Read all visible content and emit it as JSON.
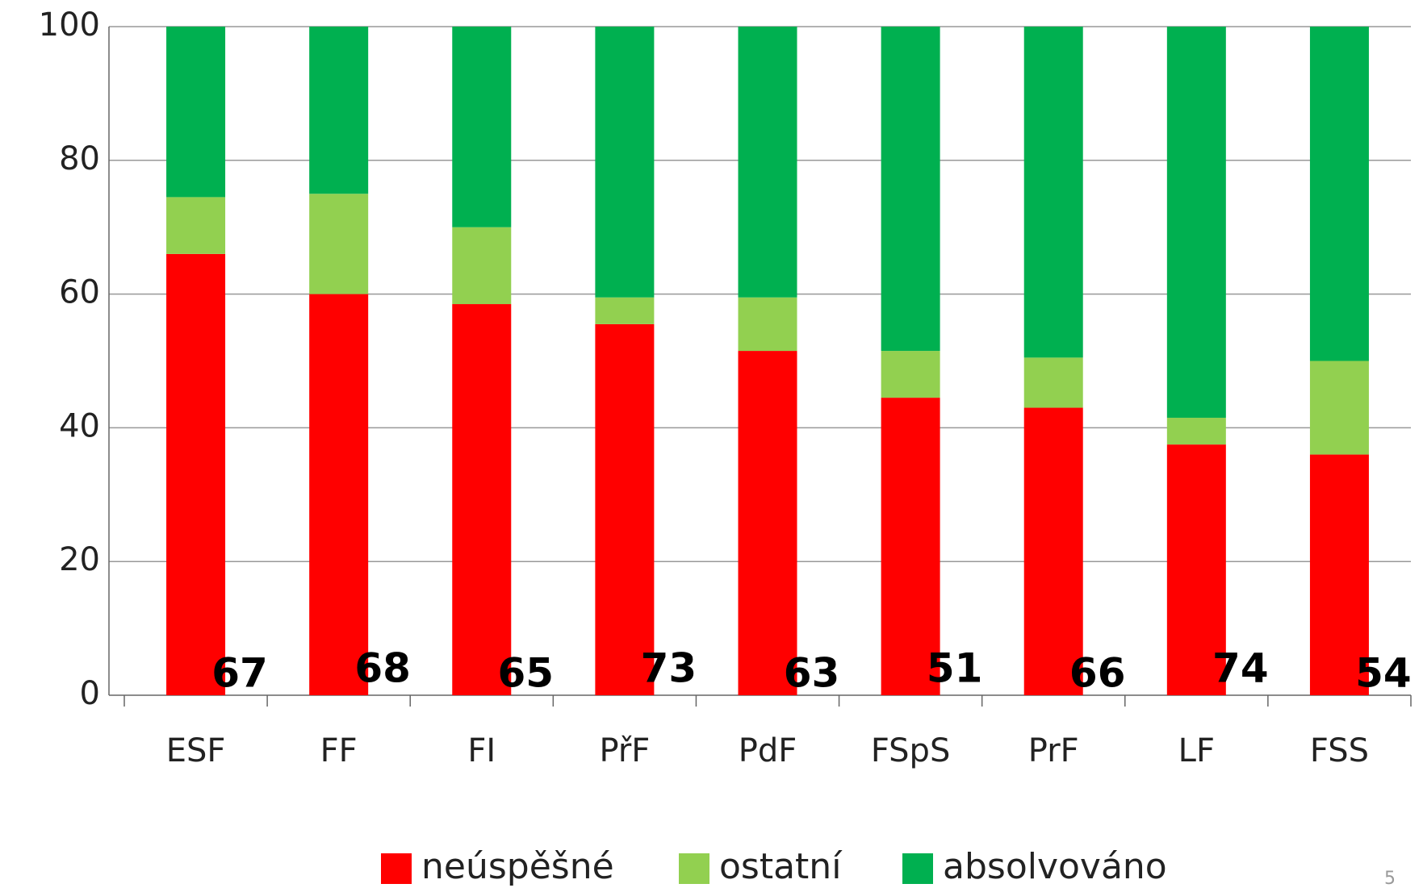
{
  "chart_data": {
    "type": "stacked_bar",
    "categories": [
      "ESF",
      "FF",
      "FI",
      "PřF",
      "PdF",
      "FSpS",
      "PrF",
      "LF",
      "FSS"
    ],
    "series": [
      {
        "name": "neúspěšné",
        "color": "#ff0000",
        "values": [
          66,
          60,
          58.5,
          55.5,
          51.5,
          44.5,
          43,
          37.5,
          36
        ]
      },
      {
        "name": "ostatní",
        "color": "#92d050",
        "values": [
          8.5,
          15,
          11.5,
          4,
          8,
          7,
          7.5,
          4,
          14
        ]
      },
      {
        "name": "absolvováno",
        "color": "#00b050",
        "values": [
          25.5,
          25,
          30,
          40.5,
          40.5,
          48.5,
          49.5,
          58.5,
          50
        ]
      }
    ],
    "counts": [
      67,
      68,
      65,
      73,
      63,
      51,
      66,
      74,
      54
    ],
    "ylim": [
      0,
      100
    ],
    "yticks": [
      0,
      20,
      40,
      60,
      80,
      100
    ],
    "grid": true,
    "legend": "bottom"
  },
  "page_number": "5"
}
